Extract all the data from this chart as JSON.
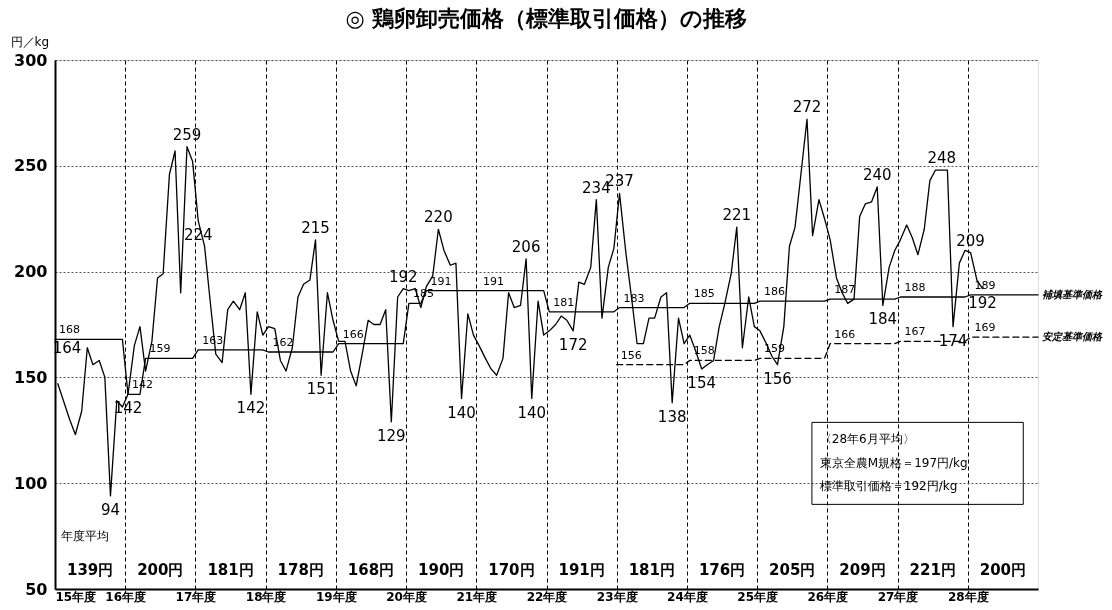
{
  "chart_data": {
    "type": "line",
    "title": "◎ 鶏卵卸売価格（標準取引価格）の推移",
    "ylabel": "円／kg",
    "xlim": [
      15,
      29
    ],
    "ylim": [
      50,
      300
    ],
    "yticks": [
      50,
      100,
      150,
      200,
      250,
      300
    ],
    "xticks": [
      {
        "value": 15,
        "label": "15年度"
      },
      {
        "value": 16,
        "label": "16年度"
      },
      {
        "value": 17,
        "label": "17年度"
      },
      {
        "value": 18,
        "label": "18年度"
      },
      {
        "value": 19,
        "label": "19年度"
      },
      {
        "value": 20,
        "label": "20年度"
      },
      {
        "value": 21,
        "label": "21年度"
      },
      {
        "value": 22,
        "label": "22年度"
      },
      {
        "value": 23,
        "label": "23年度"
      },
      {
        "value": 24,
        "label": "24年度"
      },
      {
        "value": 25,
        "label": "25年度"
      },
      {
        "value": 26,
        "label": "26年度"
      },
      {
        "value": 27,
        "label": "27年度"
      },
      {
        "value": 28,
        "label": "28年度"
      }
    ],
    "grid": true,
    "series": [
      {
        "color": "#000000",
        "line_style": "solid",
        "x": [
          15.04,
          15.13,
          15.21,
          15.29,
          15.38,
          15.46,
          15.54,
          15.63,
          15.71,
          15.79,
          15.88,
          15.96,
          16.04,
          16.13,
          16.21,
          16.29,
          16.38,
          16.46,
          16.54,
          16.63,
          16.71,
          16.79,
          16.88,
          16.96,
          17.04,
          17.13,
          17.21,
          17.29,
          17.38,
          17.46,
          17.54,
          17.63,
          17.71,
          17.79,
          17.88,
          17.96,
          18.04,
          18.13,
          18.21,
          18.29,
          18.38,
          18.46,
          18.54,
          18.63,
          18.71,
          18.79,
          18.88,
          18.96,
          19.04,
          19.13,
          19.21,
          19.29,
          19.38,
          19.46,
          19.54,
          19.63,
          19.71,
          19.79,
          19.88,
          19.96,
          20.04,
          20.13,
          20.21,
          20.29,
          20.38,
          20.46,
          20.54,
          20.63,
          20.71,
          20.79,
          20.88,
          20.96,
          21.04,
          21.13,
          21.21,
          21.29,
          21.38,
          21.46,
          21.54,
          21.63,
          21.71,
          21.79,
          21.88,
          21.96,
          22.04,
          22.13,
          22.21,
          22.29,
          22.38,
          22.46,
          22.54,
          22.63,
          22.71,
          22.79,
          22.88,
          22.96,
          23.04,
          23.13,
          23.21,
          23.29,
          23.38,
          23.46,
          23.54,
          23.63,
          23.71,
          23.79,
          23.88,
          23.96,
          24.04,
          24.13,
          24.21,
          24.29,
          24.38,
          24.46,
          24.54,
          24.63,
          24.71,
          24.79,
          24.88,
          24.96,
          25.04,
          25.13,
          25.21,
          25.29,
          25.38,
          25.46,
          25.54,
          25.63,
          25.71,
          25.79,
          25.88,
          25.96,
          26.04,
          26.13,
          26.21,
          26.29,
          26.38,
          26.46,
          26.54,
          26.63,
          26.71,
          26.79,
          26.88,
          26.96,
          27.04,
          27.13,
          27.21,
          27.29,
          27.38,
          27.46,
          27.54,
          27.63,
          27.71,
          27.79,
          27.88,
          27.96,
          28.04,
          28.13,
          28.21
        ],
        "values": [
          147,
          138,
          130,
          123,
          134,
          164,
          156,
          158,
          150,
          94,
          139,
          136,
          142,
          165,
          174,
          153,
          167,
          197,
          199,
          246,
          257,
          190,
          259,
          252,
          224,
          212,
          186,
          161,
          157,
          182,
          186,
          182,
          190,
          142,
          181,
          170,
          174,
          173,
          158,
          153,
          164,
          188,
          194,
          196,
          215,
          151,
          190,
          177,
          167,
          167,
          153,
          146,
          162,
          177,
          175,
          175,
          182,
          129,
          188,
          192,
          191,
          192,
          183,
          193,
          198,
          220,
          210,
          203,
          204,
          140,
          180,
          170,
          165,
          159,
          154,
          151,
          159,
          190,
          183,
          184,
          206,
          140,
          186,
          170,
          172,
          175,
          179,
          177,
          172,
          195,
          194,
          202,
          234,
          178,
          202,
          211,
          237,
          209,
          188,
          166,
          166,
          178,
          178,
          188,
          190,
          138,
          178,
          166,
          170,
          162,
          154,
          156,
          158,
          174,
          185,
          199,
          221,
          164,
          188,
          174,
          172,
          166,
          160,
          156,
          174,
          212,
          221,
          248,
          272,
          217,
          234,
          225,
          215,
          197,
          190,
          185,
          187,
          226,
          232,
          233,
          240,
          184,
          202,
          210,
          215,
          222,
          216,
          208,
          220,
          243,
          248,
          248,
          248,
          174,
          204,
          210,
          209,
          196,
          192
        ],
        "value_labels": [
          null,
          null,
          null,
          null,
          null,
          "164",
          null,
          null,
          null,
          "94",
          null,
          null,
          "142",
          null,
          null,
          null,
          null,
          null,
          null,
          null,
          null,
          null,
          "259",
          null,
          "224",
          null,
          null,
          null,
          null,
          null,
          null,
          null,
          null,
          "142",
          null,
          null,
          null,
          null,
          null,
          null,
          null,
          null,
          null,
          null,
          "215",
          "151",
          null,
          null,
          null,
          null,
          null,
          null,
          null,
          null,
          null,
          null,
          null,
          "129",
          null,
          "192",
          null,
          null,
          null,
          null,
          null,
          "220",
          null,
          null,
          null,
          "140",
          null,
          null,
          null,
          null,
          null,
          null,
          null,
          null,
          null,
          null,
          "206",
          "140",
          null,
          null,
          null,
          null,
          null,
          null,
          "172",
          null,
          null,
          null,
          "234",
          null,
          null,
          null,
          "237",
          null,
          null,
          null,
          null,
          null,
          null,
          null,
          null,
          "138",
          null,
          null,
          null,
          null,
          "154",
          null,
          null,
          null,
          null,
          null,
          "221",
          null,
          null,
          null,
          null,
          null,
          null,
          "156",
          null,
          null,
          null,
          null,
          "272",
          null,
          null,
          null,
          null,
          null,
          null,
          null,
          null,
          null,
          null,
          null,
          "240",
          "184",
          null,
          null,
          null,
          null,
          null,
          null,
          null,
          null,
          null,
          "248",
          null,
          "174",
          null,
          null,
          "209",
          null,
          "192"
        ]
      },
      {
        "name": "補填基準価格",
        "color": "#000000",
        "line_style": "solid",
        "x": [
          15,
          15.96,
          16.04,
          16.21,
          16.29,
          16.96,
          17.04,
          17.96,
          18.04,
          18.96,
          19.04,
          19.96,
          20.04,
          20.21,
          20.29,
          21.04,
          21.96,
          22.04,
          22.96,
          23.04,
          23.96,
          24.04,
          24.96,
          25.04,
          25.96,
          26.04,
          26.96,
          27.04,
          27.96,
          28.04,
          29
        ],
        "values": [
          168,
          168,
          142,
          142,
          159,
          159,
          163,
          163,
          162,
          162,
          166,
          166,
          185,
          185,
          191,
          191,
          191,
          181,
          181,
          183,
          183,
          185,
          185,
          186,
          186,
          187,
          187,
          188,
          188,
          189,
          189
        ],
        "value_labels": [
          "168",
          null,
          "142",
          null,
          "159",
          null,
          "163",
          null,
          "162",
          null,
          "166",
          null,
          "185",
          null,
          "191",
          "191",
          null,
          "181",
          null,
          "183",
          null,
          "185",
          null,
          "186",
          null,
          "187",
          null,
          "188",
          null,
          "189",
          null
        ]
      },
      {
        "name": "安定基準価格",
        "color": "#000000",
        "line_style": "dashed",
        "x": [
          23,
          23.96,
          24.04,
          24.96,
          25.04,
          25.96,
          26.04,
          26.96,
          27.04,
          27.96,
          28.04,
          29
        ],
        "values": [
          156,
          156,
          158,
          158,
          159,
          159,
          166,
          166,
          167,
          167,
          169,
          169
        ],
        "value_labels": [
          "156",
          null,
          "158",
          null,
          "159",
          null,
          "166",
          null,
          "167",
          null,
          "169",
          null
        ]
      }
    ],
    "annotations": [
      "年度平均",
      "139円",
      "200円",
      "181円",
      "178円",
      "168円",
      "190円",
      "170円",
      "191円",
      "181円",
      "176円",
      "205円",
      "209円",
      "221円",
      "200円",
      "〈28年6月平均〉",
      "東京全農M規格＝197円/kg",
      "標準取引価格＝192円/kg"
    ]
  }
}
